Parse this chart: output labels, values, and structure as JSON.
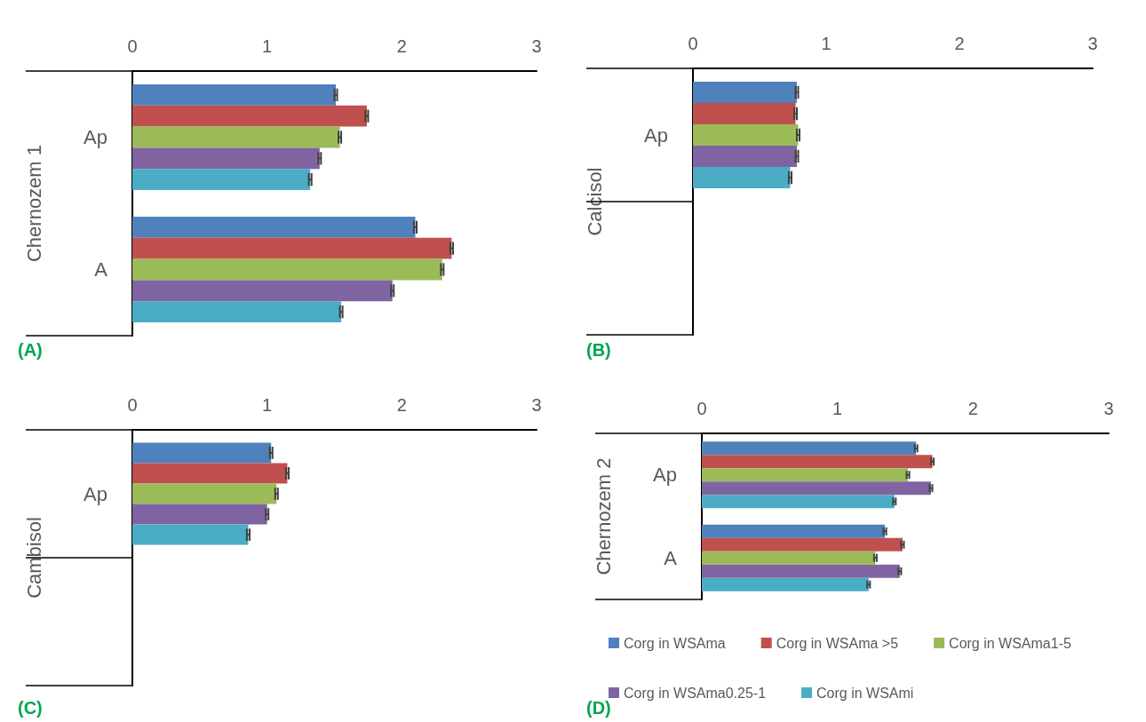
{
  "chart_data": [
    {
      "type": "bar",
      "orientation": "horizontal",
      "ylabel": "Chernozem 1",
      "categories": [
        "Ap",
        "A"
      ],
      "xlim": [
        0,
        3
      ],
      "xticks": [
        0,
        1,
        2,
        3
      ],
      "grid": false,
      "legend": false,
      "annotations": [
        "(A)"
      ],
      "series": [
        {
          "color": "#4f81bd",
          "values": [
            1.51,
            2.1
          ],
          "errors": [
            0.01,
            0.01
          ]
        },
        {
          "color": "#c0504d",
          "values": [
            1.74,
            2.37
          ],
          "errors": [
            0.01,
            0.01
          ]
        },
        {
          "color": "#9bbb59",
          "values": [
            1.54,
            2.3
          ],
          "errors": [
            0.01,
            0.01
          ]
        },
        {
          "color": "#8064a2",
          "values": [
            1.39,
            1.93
          ],
          "errors": [
            0.01,
            0.01
          ]
        },
        {
          "color": "#4bacc6",
          "values": [
            1.32,
            1.55
          ],
          "errors": [
            0.01,
            0.01
          ]
        }
      ]
    },
    {
      "type": "bar",
      "orientation": "horizontal",
      "ylabel": "Calcisol",
      "categories": [
        "Ap",
        null
      ],
      "xlim": [
        0,
        3
      ],
      "xticks": [
        0,
        1,
        2,
        3
      ],
      "grid": false,
      "legend": false,
      "annotations": [
        "(B)"
      ],
      "series": [
        {
          "color": "#4f81bd",
          "values": [
            0.78,
            null
          ],
          "errors": [
            0.01,
            null
          ]
        },
        {
          "color": "#c0504d",
          "values": [
            0.77,
            null
          ],
          "errors": [
            0.01,
            null
          ]
        },
        {
          "color": "#9bbb59",
          "values": [
            0.79,
            null
          ],
          "errors": [
            0.01,
            null
          ]
        },
        {
          "color": "#8064a2",
          "values": [
            0.78,
            null
          ],
          "errors": [
            0.01,
            null
          ]
        },
        {
          "color": "#4bacc6",
          "values": [
            0.73,
            null
          ],
          "errors": [
            0.01,
            null
          ]
        }
      ]
    },
    {
      "type": "bar",
      "orientation": "horizontal",
      "ylabel": "Cambisol",
      "categories": [
        "Ap",
        null
      ],
      "xlim": [
        0,
        3
      ],
      "xticks": [
        0,
        1,
        2,
        3
      ],
      "grid": false,
      "legend": false,
      "annotations": [
        "(C)"
      ],
      "series": [
        {
          "color": "#4f81bd",
          "values": [
            1.03,
            null
          ],
          "errors": [
            0.01,
            null
          ]
        },
        {
          "color": "#c0504d",
          "values": [
            1.15,
            null
          ],
          "errors": [
            0.01,
            null
          ]
        },
        {
          "color": "#9bbb59",
          "values": [
            1.07,
            null
          ],
          "errors": [
            0.01,
            null
          ]
        },
        {
          "color": "#8064a2",
          "values": [
            1.0,
            null
          ],
          "errors": [
            0.01,
            null
          ]
        },
        {
          "color": "#4bacc6",
          "values": [
            0.86,
            null
          ],
          "errors": [
            0.01,
            null
          ]
        }
      ]
    },
    {
      "type": "bar",
      "orientation": "horizontal",
      "ylabel": "Chernozem 2",
      "categories": [
        "Ap",
        "A"
      ],
      "xlim": [
        0,
        3
      ],
      "xticks": [
        0,
        1,
        2,
        3
      ],
      "grid": false,
      "legend": "bottom",
      "annotations": [
        "(D)"
      ],
      "series": [
        {
          "name": "Corg in WSAma",
          "color": "#4f81bd",
          "values": [
            1.58,
            1.35
          ],
          "errors": [
            0.01,
            0.01
          ]
        },
        {
          "name": "Corg in WSAma >5",
          "color": "#c0504d",
          "values": [
            1.7,
            1.48
          ],
          "errors": [
            0.01,
            0.01
          ]
        },
        {
          "name": "Corg in WSAma1-5",
          "color": "#9bbb59",
          "values": [
            1.52,
            1.28
          ],
          "errors": [
            0.01,
            0.01
          ]
        },
        {
          "name": "Corg in WSAma0.25-1",
          "color": "#8064a2",
          "values": [
            1.69,
            1.46
          ],
          "errors": [
            0.01,
            0.01
          ]
        },
        {
          "name": "Corg in WSAmi",
          "color": "#4bacc6",
          "values": [
            1.42,
            1.23
          ],
          "errors": [
            0.01,
            0.01
          ]
        }
      ]
    }
  ]
}
